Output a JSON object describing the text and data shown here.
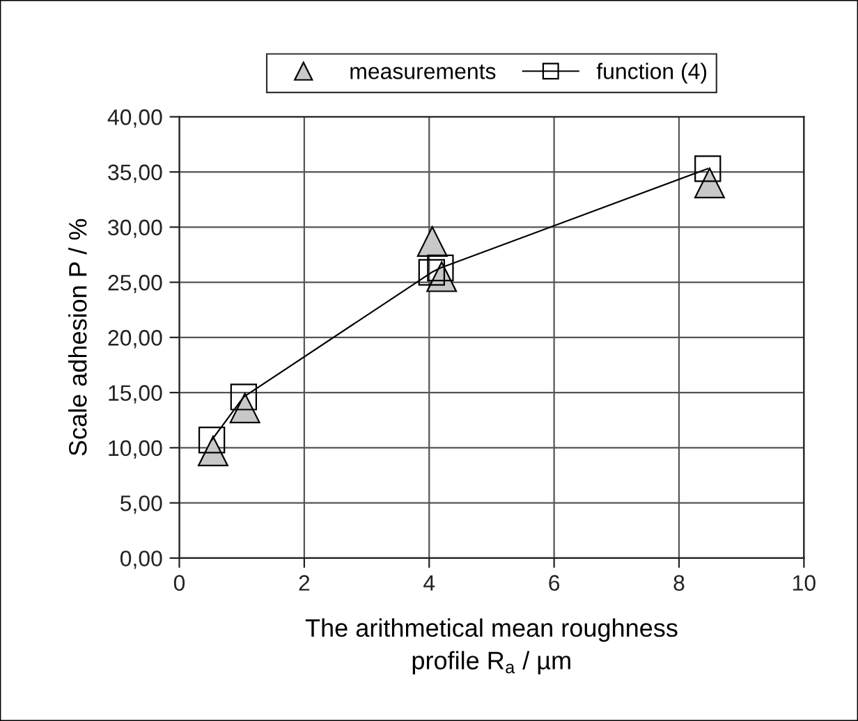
{
  "chart_data": {
    "type": "scatter",
    "xlabel": "The arithmetical mean roughness\nprofile R$_{a}$ / µm",
    "ylabel": "Scale adhesion P / %",
    "series": [
      {
        "name": "measurements",
        "marker": "triangle",
        "color": "#c8c8c8",
        "x": [
          0.54,
          1.05,
          4.05,
          4.2,
          8.49
        ],
        "values": [
          9.7,
          13.6,
          28.7,
          25.5,
          34.0
        ]
      },
      {
        "name": "function (4)",
        "type": "line",
        "marker": "square",
        "color": "#000000",
        "x": [
          0.52,
          1.03,
          4.04,
          4.18,
          8.46
        ],
        "values": [
          10.7,
          14.6,
          25.9,
          26.3,
          35.3
        ]
      }
    ],
    "xlim": [
      0,
      10
    ],
    "xticks": [
      0,
      2,
      4,
      6,
      8,
      10
    ],
    "ylim": [
      0,
      40
    ],
    "yticks": [
      {
        "value": 0,
        "label": "0,00"
      },
      {
        "value": 5,
        "label": "5,00"
      },
      {
        "value": 10,
        "label": "10,00"
      },
      {
        "value": 15,
        "label": "15,00"
      },
      {
        "value": 20,
        "label": "20,00"
      },
      {
        "value": 25,
        "label": "25,00"
      },
      {
        "value": 30,
        "label": "30,00"
      },
      {
        "value": 35,
        "label": "35,00"
      },
      {
        "value": 40,
        "label": "40,00"
      }
    ],
    "grid": true,
    "legend": "top"
  }
}
